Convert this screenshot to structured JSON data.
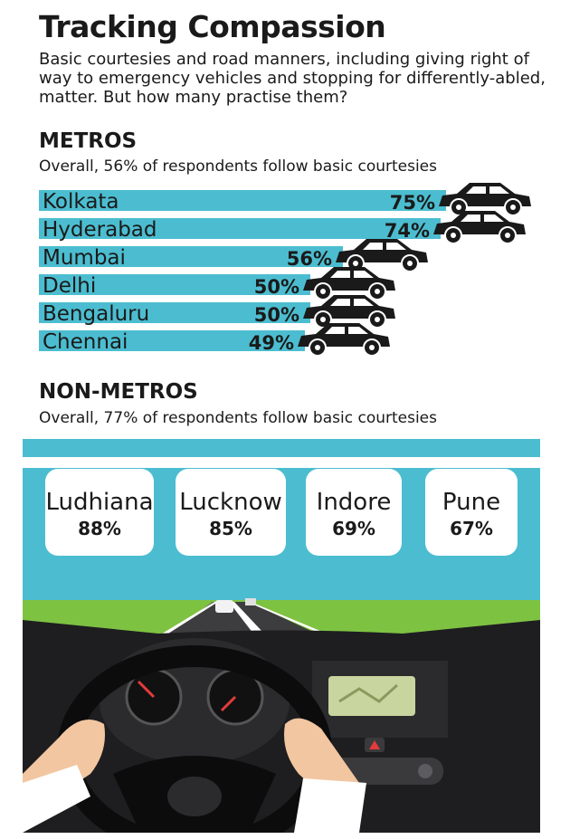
{
  "header": {
    "title": "Tracking Compassion",
    "subtitle": "Basic courtesies and road manners, including giving right of way to emergency vehicles and stopping for differently-abled, matter. But how many practise them?"
  },
  "metros": {
    "heading": "METROS",
    "overall": "Overall, 56% of respondents follow basic courtesies"
  },
  "non_metros": {
    "heading": "NON-METROS",
    "overall": "Overall, 77% of respondents follow basic courtesies"
  },
  "colors": {
    "bar": "#4cbdd0",
    "car": "#1a1a1a",
    "sky": "#4cbdd0",
    "grass": "#7ec242",
    "road": "#3d3d3f",
    "dashboard": "#1e1e20"
  },
  "chart_data": [
    {
      "type": "bar",
      "title": "METROS",
      "subtitle": "Overall, 56% of respondents follow basic courtesies",
      "orientation": "horizontal",
      "unit": "%",
      "categories": [
        "Kolkata",
        "Hyderabad",
        "Mumbai",
        "Delhi",
        "Bengaluru",
        "Chennai"
      ],
      "values": [
        75,
        74,
        56,
        50,
        50,
        49
      ],
      "labels": [
        "75%",
        "74%",
        "56%",
        "50%",
        "50%",
        "49%"
      ]
    },
    {
      "type": "table",
      "title": "NON-METROS",
      "subtitle": "Overall, 77% of respondents follow basic courtesies",
      "unit": "%",
      "categories": [
        "Ludhiana",
        "Lucknow",
        "Indore",
        "Pune"
      ],
      "values": [
        88,
        85,
        69,
        67
      ],
      "labels": [
        "88%",
        "85%",
        "69%",
        "67%"
      ]
    }
  ]
}
